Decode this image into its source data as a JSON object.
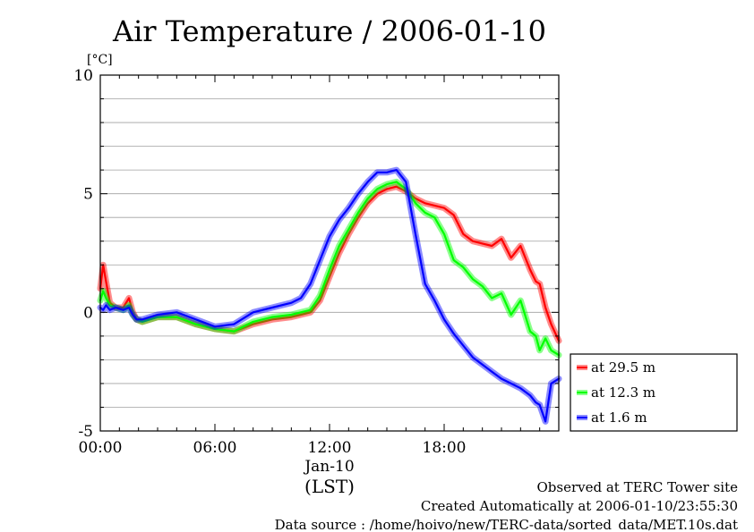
{
  "chart_data": {
    "type": "line",
    "title": "Air Temperature / 2006-01-10",
    "ylabel": "[°C]",
    "xlabel": "(LST)",
    "x_date_label": "Jan-10",
    "ylim": [
      -5,
      10
    ],
    "xlim": [
      0,
      24
    ],
    "y_ticks": [
      {
        "value": 10,
        "label": "10"
      },
      {
        "value": 5,
        "label": "5"
      },
      {
        "value": 0,
        "label": "0"
      },
      {
        "value": -5,
        "label": "-5"
      }
    ],
    "x_ticks": [
      {
        "value": 0,
        "label": "00:00"
      },
      {
        "value": 6,
        "label": "06:00"
      },
      {
        "value": 12,
        "label": "12:00"
      },
      {
        "value": 18,
        "label": "18:00"
      }
    ],
    "grid": true,
    "legend_position": "right",
    "series": [
      {
        "name": "at 29.5 m",
        "color": "#ff0000",
        "x": [
          0,
          0.15,
          0.3,
          0.5,
          0.8,
          1.2,
          1.5,
          1.7,
          1.9,
          2.2,
          3,
          4,
          5,
          6,
          7,
          8,
          9,
          10,
          10.5,
          11,
          11.5,
          12,
          12.5,
          13,
          13.5,
          14,
          14.5,
          15,
          15.5,
          16,
          16.5,
          17,
          17.5,
          18,
          18.5,
          19,
          19.5,
          20,
          20.5,
          21,
          21.5,
          22,
          22.5,
          22.8,
          23,
          23.3,
          23.6,
          24
        ],
        "y": [
          1.0,
          2.0,
          1.3,
          0.4,
          0.2,
          0.2,
          0.6,
          0.0,
          -0.3,
          -0.4,
          -0.2,
          -0.2,
          -0.5,
          -0.7,
          -0.8,
          -0.5,
          -0.3,
          -0.2,
          -0.1,
          0.0,
          0.5,
          1.5,
          2.5,
          3.3,
          4.0,
          4.6,
          5.0,
          5.2,
          5.3,
          5.1,
          4.8,
          4.6,
          4.5,
          4.4,
          4.1,
          3.3,
          3.0,
          2.9,
          2.8,
          3.1,
          2.3,
          2.8,
          1.8,
          1.3,
          1.2,
          0.2,
          -0.5,
          -1.2
        ]
      },
      {
        "name": "at 12.3 m",
        "color": "#00ff00",
        "x": [
          0,
          0.15,
          0.3,
          0.5,
          0.8,
          1.2,
          1.5,
          1.7,
          1.9,
          2.2,
          3,
          4,
          5,
          6,
          7,
          8,
          9,
          10,
          10.5,
          11,
          11.5,
          12,
          12.5,
          13,
          13.5,
          14,
          14.5,
          15,
          15.5,
          16,
          16.5,
          17,
          17.5,
          18,
          18.5,
          19,
          19.5,
          20,
          20.5,
          21,
          21.5,
          22,
          22.5,
          22.8,
          23,
          23.3,
          23.6,
          24
        ],
        "y": [
          0.5,
          0.9,
          0.6,
          0.3,
          0.2,
          0.1,
          0.3,
          -0.1,
          -0.3,
          -0.4,
          -0.2,
          -0.2,
          -0.5,
          -0.7,
          -0.8,
          -0.4,
          -0.2,
          -0.1,
          0.0,
          0.1,
          0.7,
          1.8,
          2.8,
          3.5,
          4.2,
          4.8,
          5.2,
          5.4,
          5.5,
          5.2,
          4.6,
          4.2,
          4.0,
          3.3,
          2.2,
          1.9,
          1.4,
          1.1,
          0.6,
          0.8,
          -0.1,
          0.5,
          -0.8,
          -1.0,
          -1.6,
          -1.1,
          -1.6,
          -1.8
        ]
      },
      {
        "name": "at 1.6 m",
        "color": "#0000ff",
        "x": [
          0,
          0.15,
          0.3,
          0.5,
          0.8,
          1.2,
          1.5,
          1.7,
          1.9,
          2.2,
          3,
          4,
          5,
          6,
          7,
          8,
          9,
          10,
          10.5,
          11,
          11.5,
          12,
          12.5,
          13,
          13.5,
          14,
          14.5,
          15,
          15.5,
          16,
          16.5,
          17,
          17.5,
          18,
          18.5,
          19,
          19.5,
          20,
          20.5,
          21,
          21.5,
          22,
          22.5,
          22.8,
          23,
          23.3,
          23.6,
          24
        ],
        "y": [
          0.2,
          0.1,
          0.3,
          0.1,
          0.2,
          0.1,
          0.2,
          -0.1,
          -0.3,
          -0.3,
          -0.1,
          0.0,
          -0.3,
          -0.6,
          -0.5,
          0.0,
          0.2,
          0.4,
          0.6,
          1.2,
          2.2,
          3.2,
          3.9,
          4.4,
          5.0,
          5.5,
          5.9,
          5.9,
          6.0,
          5.5,
          3.3,
          1.2,
          0.5,
          -0.3,
          -0.9,
          -1.4,
          -1.9,
          -2.2,
          -2.5,
          -2.8,
          -3.0,
          -3.2,
          -3.5,
          -3.8,
          -3.9,
          -4.6,
          -3.0,
          -2.8
        ]
      }
    ],
    "footer": {
      "site": "Observed at TERC Tower site",
      "created": "Created Automatically at 2006-01-10/23:55:30",
      "source": "Data source : /home/hoivo/new/TERC-data/sorted_data/MET.10s.dat"
    }
  }
}
